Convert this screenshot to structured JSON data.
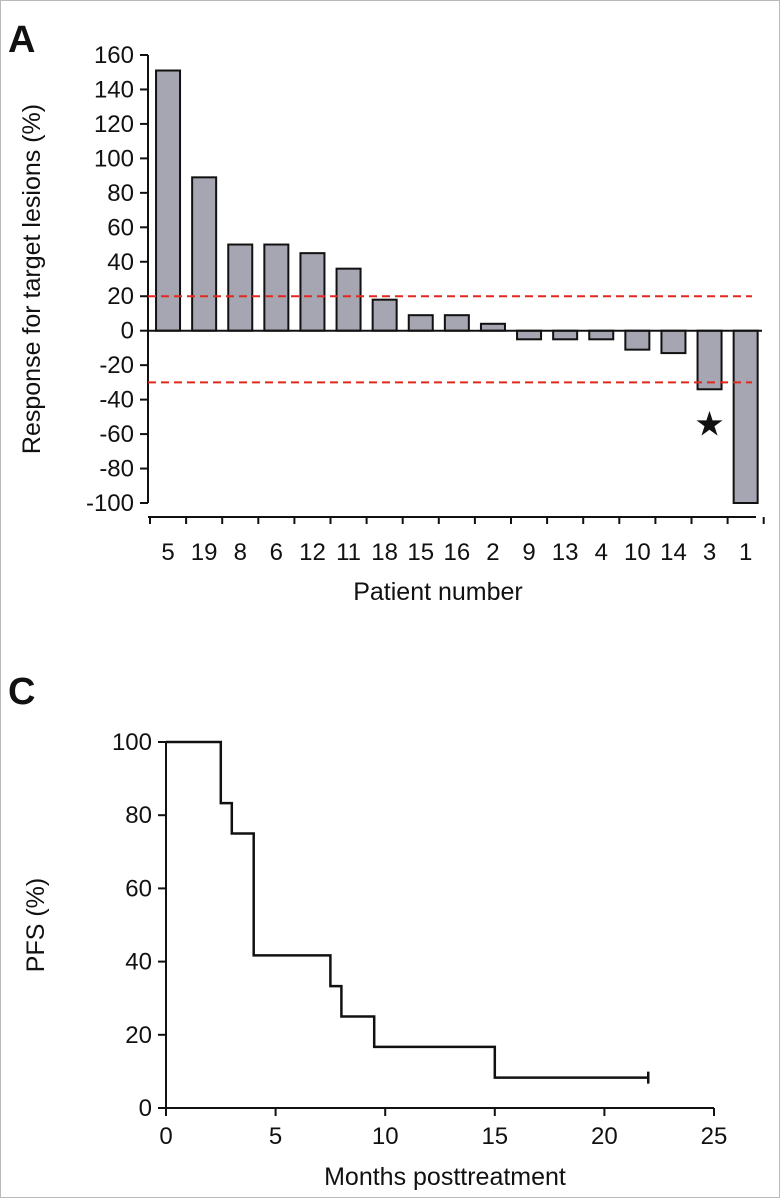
{
  "chart_data": [
    {
      "panel": "A",
      "type": "bar",
      "title": "",
      "xlabel": "Patient number",
      "ylabel": "Response for target lesions (%)",
      "ylim": [
        -100,
        160
      ],
      "yticks": [
        160,
        140,
        120,
        100,
        80,
        60,
        40,
        20,
        0,
        -20,
        -40,
        -60,
        -80,
        -100
      ],
      "categories": [
        "5",
        "19",
        "8",
        "6",
        "12",
        "11",
        "18",
        "15",
        "16",
        "2",
        "9",
        "13",
        "4",
        "10",
        "14",
        "3",
        "1"
      ],
      "values": [
        151,
        89,
        50,
        50,
        45,
        36,
        18,
        9,
        9,
        4,
        -5,
        -5,
        -5,
        -11,
        -13,
        -34,
        -100
      ],
      "reference_lines": [
        20,
        -30
      ],
      "reference_line_color": "#e0281e",
      "bar_color": "#a6a6b2",
      "annotation": {
        "symbol": "★",
        "category": "3"
      }
    },
    {
      "panel": "C",
      "type": "line",
      "title": "",
      "xlabel": "Months posttreatment",
      "ylabel": "PFS (%)",
      "xlim": [
        0,
        25
      ],
      "ylim": [
        0,
        100
      ],
      "xticks": [
        0,
        5,
        10,
        15,
        20,
        25
      ],
      "yticks": [
        0,
        20,
        40,
        60,
        80,
        100
      ],
      "step_points": [
        [
          0,
          100
        ],
        [
          2.5,
          100
        ],
        [
          2.5,
          83.3
        ],
        [
          3,
          83.3
        ],
        [
          3,
          75
        ],
        [
          4,
          75
        ],
        [
          4,
          41.7
        ],
        [
          7.5,
          41.7
        ],
        [
          7.5,
          33.3
        ],
        [
          8,
          33.3
        ],
        [
          8,
          25
        ],
        [
          9.5,
          25
        ],
        [
          9.5,
          16.7
        ],
        [
          15,
          16.7
        ],
        [
          15,
          8.3
        ],
        [
          22,
          8.3
        ]
      ],
      "censor_x": 22
    }
  ]
}
